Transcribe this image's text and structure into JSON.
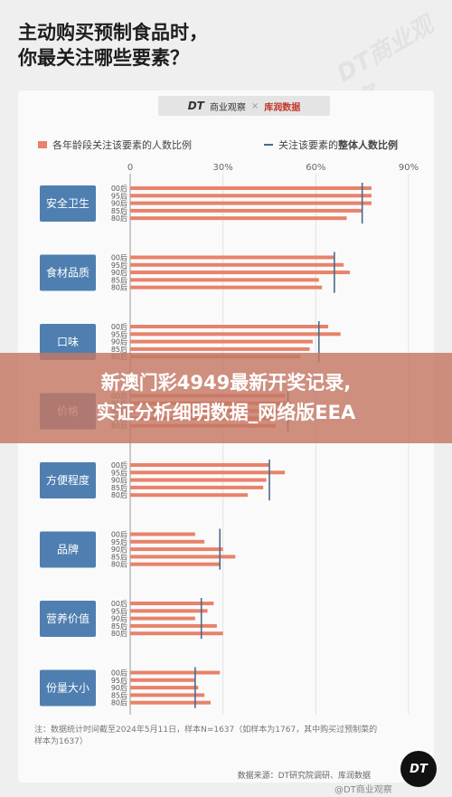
{
  "title": {
    "line1": "主动购买预制食品时，",
    "line2": "你最关注哪些要素？"
  },
  "brand": {
    "dt": "DT",
    "dt_name": "商业观察",
    "separator": "×",
    "partner": "库润数据"
  },
  "banner": {
    "line1": "新澳门彩4949最新开奖记录,",
    "line2": "实证分析细明数据_网络版EEA"
  },
  "watermark": "DT商业观察",
  "note": {
    "line1": "注：数据统计时间截至2024年5月11日，样本N=1637（如样本为1767，其中购买过预制菜的",
    "line2": "样本为1637）"
  },
  "source": "数据来源：DT研究院调研、库润数据",
  "logo_text": "DT",
  "footer": "@DT商业观察",
  "colors": {
    "bar": "#e8826a",
    "line": "#4a6a8a",
    "category_box": "#4e7fb0"
  },
  "chart_data": {
    "type": "bar",
    "orientation": "horizontal",
    "legend": {
      "bar_label": "各年龄段关注该要素的人数比例",
      "line_label_prefix": "关注该要素的",
      "line_label_bold": "整体人数比例"
    },
    "x_ticks": [
      "0",
      "30%",
      "60%",
      "90%"
    ],
    "xlim": [
      0,
      90
    ],
    "age_groups": [
      "00后",
      "95后",
      "90后",
      "85后",
      "80后"
    ],
    "categories": [
      {
        "name": "安全卫生",
        "values": [
          78,
          78,
          78,
          75,
          70
        ],
        "overall": 75
      },
      {
        "name": "食材品质",
        "values": [
          66,
          69,
          71,
          61,
          62
        ],
        "overall": 66
      },
      {
        "name": "口味",
        "values": [
          64,
          68,
          59,
          58,
          55
        ],
        "overall": 61
      },
      {
        "name": "价格",
        "values": [
          50,
          52,
          49,
          47,
          47
        ],
        "overall": 51
      },
      {
        "name": "方便程度",
        "values": [
          45,
          50,
          44,
          43,
          38
        ],
        "overall": 45
      },
      {
        "name": "品牌",
        "values": [
          21,
          24,
          30,
          34,
          29
        ],
        "overall": 29
      },
      {
        "name": "营养价值",
        "values": [
          27,
          25,
          21,
          28,
          30
        ],
        "overall": 23
      },
      {
        "name": "份量大小",
        "values": [
          29,
          21,
          22,
          24,
          26
        ],
        "overall": 21
      }
    ]
  }
}
